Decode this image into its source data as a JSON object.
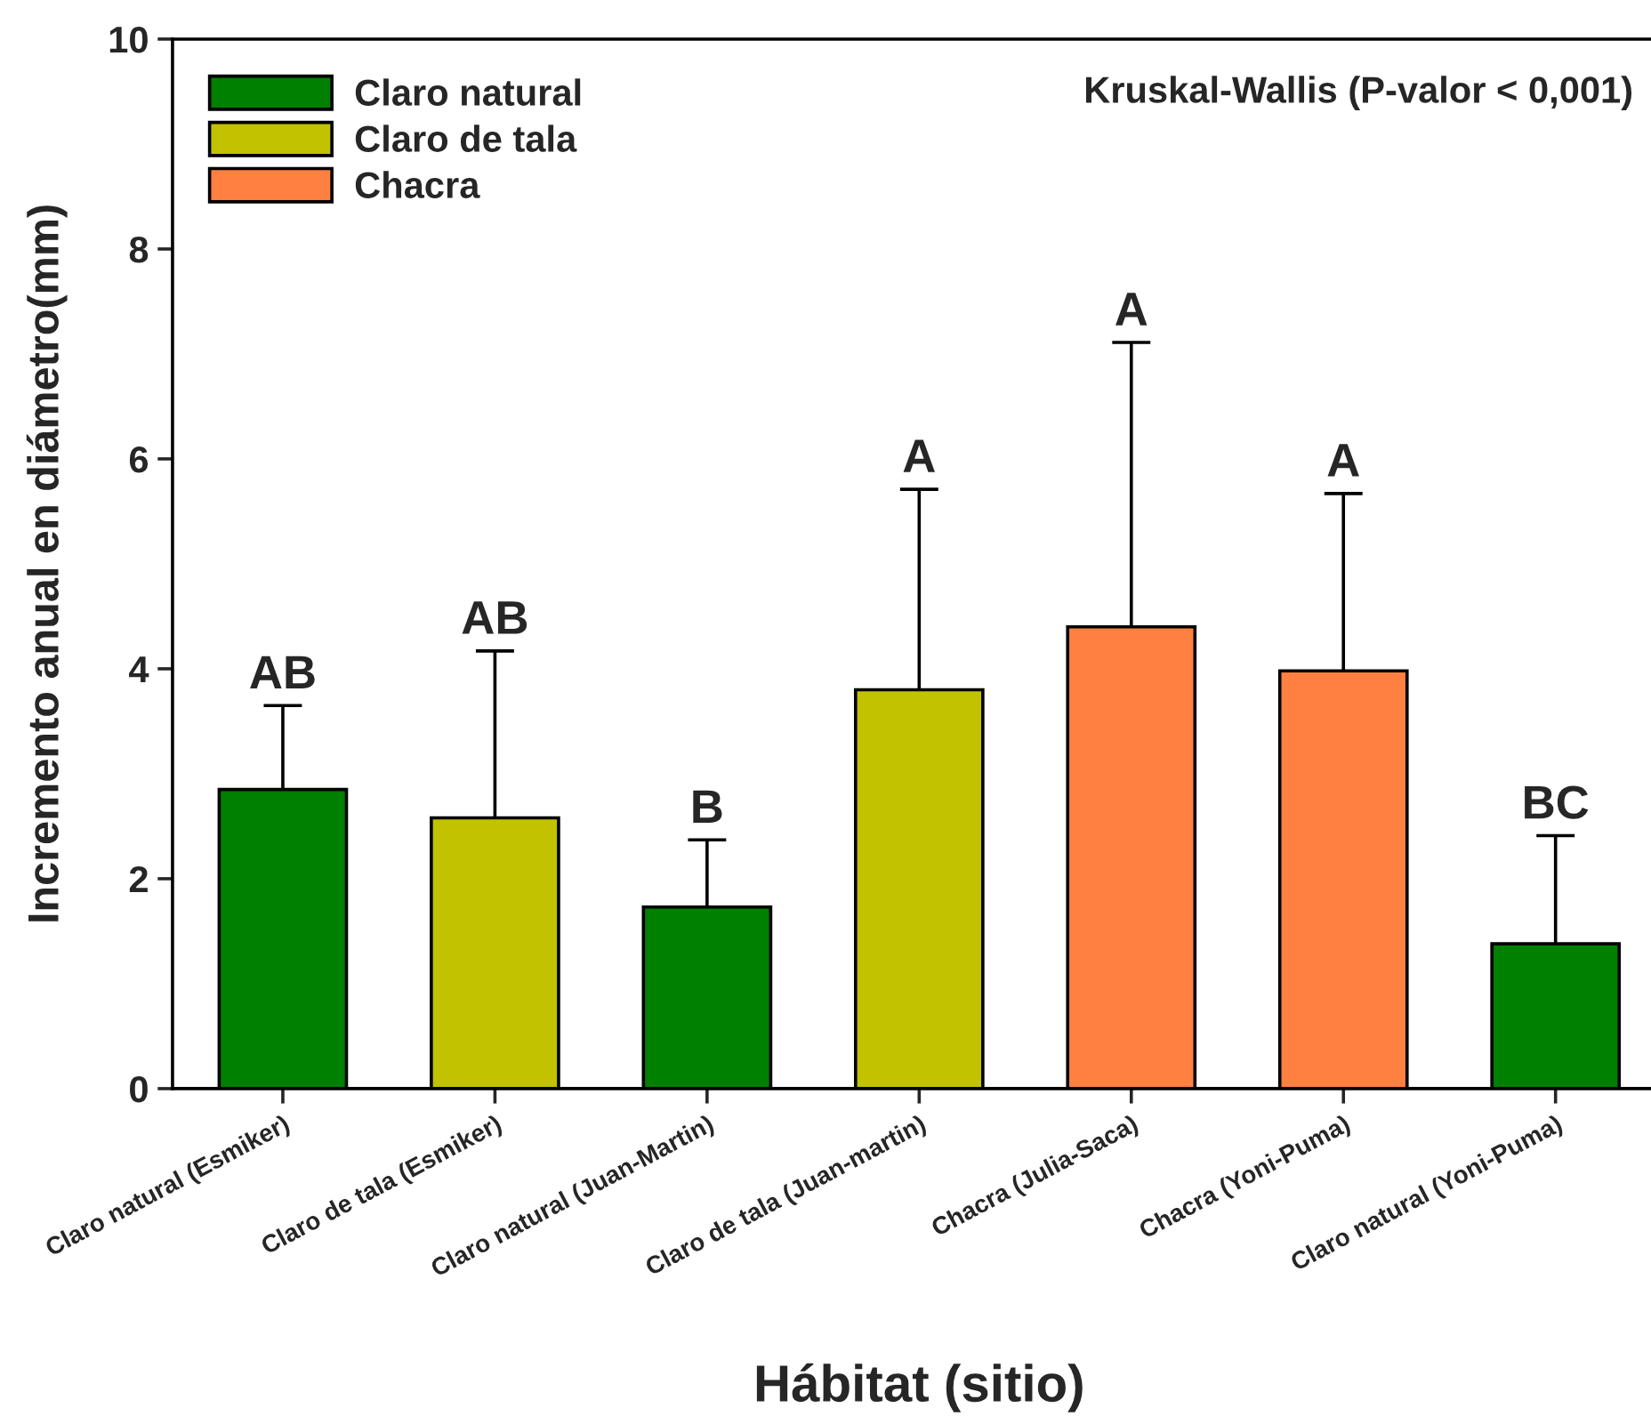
{
  "chart_data": {
    "type": "bar",
    "xlabel": "Hábitat (sitio)",
    "ylabel": "Incremento anual en diámetro(mm)",
    "categories": [
      "Claro natural (Esmiker)",
      "Claro de tala (Esmiker)",
      "Claro natural (Juan-Martin)",
      "Claro de tala (Juan-martin)",
      "Chacra (Julia-Saca)",
      "Chacra (Yoni-Puma)",
      "Claro natural (Yoni-Puma)"
    ],
    "series": [
      {
        "name": "Claro natural",
        "color": "#008000",
        "values": [
          2.85,
          null,
          1.73,
          null,
          null,
          null,
          1.38
        ],
        "errors": [
          [
            2.85,
            3.65
          ],
          null,
          [
            1.73,
            2.37
          ],
          null,
          null,
          null,
          [
            1.38,
            2.41
          ]
        ]
      },
      {
        "name": "Claro de tala",
        "color": "#c2c200",
        "values": [
          null,
          2.58,
          null,
          3.8,
          null,
          null,
          null
        ],
        "errors": [
          null,
          [
            2.58,
            4.17
          ],
          null,
          [
            3.8,
            5.71
          ],
          null,
          null,
          null
        ]
      },
      {
        "name": "Chacra",
        "color": "#ff8040",
        "values": [
          null,
          null,
          null,
          null,
          4.4,
          3.98,
          null
        ],
        "errors": [
          null,
          null,
          null,
          null,
          [
            4.4,
            7.11
          ],
          [
            3.98,
            5.67
          ],
          null
        ]
      }
    ],
    "ylim": [
      0,
      10
    ],
    "yticks": [
      0,
      2,
      4,
      6,
      8,
      10
    ],
    "legend": "top left",
    "annotations": [
      "Kruskal-Wallis (P-valor < 0,001)",
      {
        "text": "AB",
        "x": "Claro natural (Esmiker)",
        "y": 3.65
      },
      {
        "text": "AB",
        "x": "Claro de tala (Esmiker)",
        "y": 4.17
      },
      {
        "text": "B",
        "x": "Claro natural (Juan-Martin)",
        "y": 2.37
      },
      {
        "text": "A",
        "x": "Claro de tala (Juan-martin)",
        "y": 5.71
      },
      {
        "text": "A",
        "x": "Chacra (Julia-Saca)",
        "y": 7.11
      },
      {
        "text": "A",
        "x": "Chacra (Yoni-Puma)",
        "y": 5.67
      },
      {
        "text": "BC",
        "x": "Claro natural (Yoni-Puma)",
        "y": 2.41
      }
    ]
  }
}
